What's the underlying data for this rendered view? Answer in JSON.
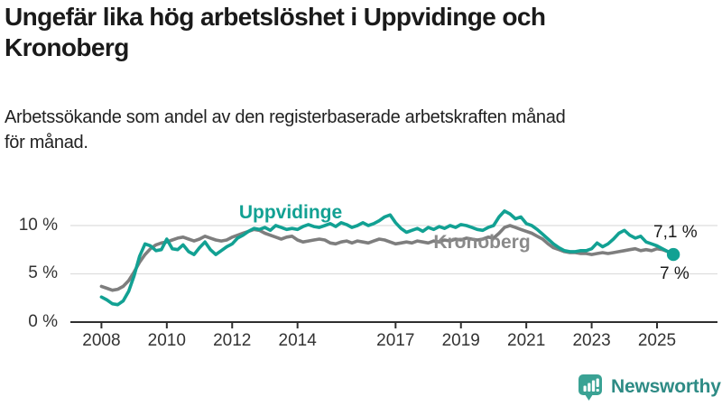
{
  "title": {
    "lines": [
      "Ungefär lika hög arbetslöshet i Uppvidinge och",
      "Kronoberg"
    ]
  },
  "subtitle": {
    "lines": [
      "Arbetssökande som andel av den registerbaserade arbetskraften månad",
      "för månad."
    ]
  },
  "chart_data": {
    "type": "line",
    "title": "Ungefär lika hög arbetslöshet i Uppvidinge och Kronoberg",
    "xlabel": "",
    "ylabel": "Arbetssökande som andel av den registerbaserade arbetskraften",
    "grid": "horizontal-only",
    "legend_position": "inline-labels",
    "x_start": 2008.0,
    "x_step_years": 0.1666667,
    "xlim": [
      2007.05,
      2026.85
    ],
    "ylim": [
      0,
      13.55
    ],
    "x_ticks": [
      2008,
      2010,
      2012,
      2014,
      2017,
      2019,
      2021,
      2023,
      2025
    ],
    "x_tick_labels": [
      "2008",
      "2010",
      "2012",
      "2014",
      "2017",
      "2019",
      "2021",
      "2023",
      "2025"
    ],
    "y_ticks": [
      {
        "value": 0,
        "label": "0 %"
      },
      {
        "value": 5,
        "label": "5 %"
      },
      {
        "value": 10,
        "label": "10 %"
      }
    ],
    "series": [
      {
        "name": "Uppvidinge",
        "color": "#12a193",
        "end_dot": true,
        "latest_value_label": "7 %",
        "values": [
          2.6,
          2.3,
          1.9,
          1.8,
          2.2,
          3.2,
          4.8,
          6.8,
          8.1,
          7.9,
          7.4,
          7.5,
          8.6,
          7.6,
          7.5,
          8.0,
          7.3,
          7.0,
          7.7,
          8.3,
          7.5,
          7.0,
          7.4,
          7.8,
          8.1,
          8.7,
          9.0,
          9.4,
          9.7,
          9.6,
          9.8,
          9.5,
          10.0,
          9.8,
          9.6,
          9.7,
          9.6,
          9.9,
          10.1,
          9.9,
          9.8,
          10.0,
          10.2,
          9.9,
          10.3,
          10.1,
          9.8,
          10.0,
          10.3,
          10.0,
          10.2,
          10.5,
          10.9,
          11.1,
          10.3,
          9.7,
          9.3,
          9.5,
          9.7,
          9.4,
          9.8,
          9.6,
          9.9,
          9.7,
          10.0,
          9.8,
          10.1,
          10.0,
          9.8,
          9.6,
          9.5,
          9.8,
          10.0,
          10.9,
          11.5,
          11.2,
          10.7,
          10.9,
          10.2,
          10.0,
          9.6,
          9.1,
          8.6,
          8.1,
          7.7,
          7.4,
          7.3,
          7.3,
          7.4,
          7.4,
          7.6,
          8.2,
          7.8,
          8.1,
          8.6,
          9.2,
          9.5,
          9.0,
          8.7,
          8.9,
          8.3,
          8.1,
          7.9,
          7.6,
          7.3,
          7.0
        ]
      },
      {
        "name": "Kronoberg",
        "color": "#7e7e7e",
        "end_dot": false,
        "latest_value_label": "7,1 %",
        "values": [
          3.7,
          3.5,
          3.3,
          3.4,
          3.7,
          4.3,
          5.2,
          6.2,
          7.0,
          7.6,
          8.0,
          8.2,
          8.3,
          8.5,
          8.7,
          8.8,
          8.6,
          8.4,
          8.6,
          8.9,
          8.7,
          8.5,
          8.4,
          8.5,
          8.8,
          9.0,
          9.2,
          9.4,
          9.6,
          9.5,
          9.2,
          9.0,
          8.8,
          8.6,
          8.8,
          8.9,
          8.5,
          8.3,
          8.4,
          8.5,
          8.6,
          8.5,
          8.2,
          8.1,
          8.3,
          8.4,
          8.2,
          8.4,
          8.3,
          8.2,
          8.4,
          8.6,
          8.5,
          8.3,
          8.1,
          8.2,
          8.3,
          8.2,
          8.4,
          8.3,
          8.2,
          8.4,
          8.3,
          8.5,
          8.4,
          8.6,
          8.5,
          8.7,
          8.6,
          8.5,
          8.6,
          8.8,
          8.7,
          9.2,
          9.8,
          10.0,
          9.8,
          9.6,
          9.4,
          9.2,
          8.9,
          8.6,
          8.1,
          7.7,
          7.5,
          7.3,
          7.2,
          7.2,
          7.1,
          7.1,
          7.0,
          7.1,
          7.2,
          7.1,
          7.2,
          7.3,
          7.4,
          7.5,
          7.6,
          7.4,
          7.5,
          7.4,
          7.6,
          7.5,
          7.3,
          7.1
        ]
      }
    ]
  },
  "annotations": {
    "uppvidinge_label": "Uppvidinge",
    "kronoberg_label": "Kronoberg",
    "end_value_top": "7,1 %",
    "end_value_bottom": "7 %"
  },
  "footer": {
    "brand": "Newsworthy",
    "brand_color": "#2e8b85",
    "icon": "newsworthy-chart-bubble-icon",
    "icon_color": "#3aa294"
  }
}
